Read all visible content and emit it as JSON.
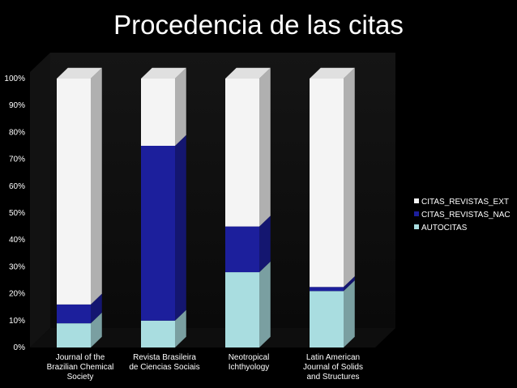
{
  "chart_data": {
    "type": "bar",
    "stacked": true,
    "percent": true,
    "three_d": true,
    "title": "Procedencia de las citas",
    "categories": [
      "Journal of the Brazilian Chemical Society",
      "Revista Brasileira de Ciencias Sociais",
      "Neotropical Ichthyology",
      "Latin American Journal of Solids and Structures"
    ],
    "category_lines": [
      [
        "Journal of the",
        "Brazilian Chemical",
        "Society"
      ],
      [
        "Revista Brasileira",
        "de Ciencias Sociais"
      ],
      [
        "Neotropical",
        "Ichthyology"
      ],
      [
        "Latin American",
        "Journal of Solids",
        "and Structures"
      ]
    ],
    "series": [
      {
        "name": "AUTOCITAS",
        "values": [
          9,
          10,
          28,
          21
        ],
        "color": "#a9dde0"
      },
      {
        "name": "CITAS_REVISTAS_NAC",
        "values": [
          7,
          65,
          17,
          1.5
        ],
        "color": "#1c1f9c"
      },
      {
        "name": "CITAS_REVISTAS_EXT",
        "values": [
          84,
          25,
          55,
          77.5
        ],
        "color": "#f4f4f4"
      }
    ],
    "y_ticks": [
      "0%",
      "10%",
      "20%",
      "30%",
      "40%",
      "50%",
      "60%",
      "70%",
      "80%",
      "90%",
      "100%"
    ],
    "ylim": [
      0,
      100
    ],
    "grid": false,
    "legend_position": "right",
    "legend_order": [
      "CITAS_REVISTAS_EXT",
      "CITAS_REVISTAS_NAC",
      "AUTOCITAS"
    ]
  }
}
